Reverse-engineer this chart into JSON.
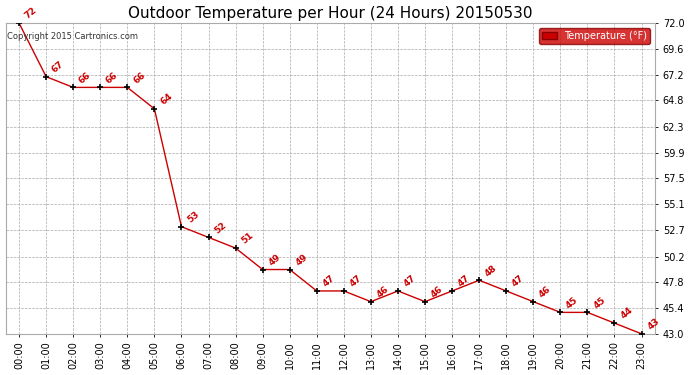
{
  "title": "Outdoor Temperature per Hour (24 Hours) 20150530",
  "copyright_text": "Copyright 2015 Cartronics.com",
  "legend_label": "Temperature (°F)",
  "hours": [
    "00:00",
    "01:00",
    "02:00",
    "03:00",
    "04:00",
    "05:00",
    "06:00",
    "07:00",
    "08:00",
    "09:00",
    "10:00",
    "11:00",
    "12:00",
    "13:00",
    "14:00",
    "15:00",
    "16:00",
    "17:00",
    "18:00",
    "19:00",
    "20:00",
    "21:00",
    "22:00",
    "23:00"
  ],
  "temps": [
    72,
    67,
    66,
    66,
    66,
    64,
    53,
    52,
    51,
    49,
    49,
    47,
    47,
    46,
    47,
    46,
    47,
    48,
    47,
    46,
    45,
    45,
    44,
    43
  ],
  "ylim": [
    43.0,
    72.0
  ],
  "yticks": [
    43.0,
    45.4,
    47.8,
    50.2,
    52.7,
    55.1,
    57.5,
    59.9,
    62.3,
    64.8,
    67.2,
    69.6,
    72.0
  ],
  "line_color": "#cc0000",
  "marker_color": "#000000",
  "label_color": "#cc0000",
  "bg_color": "#ffffff",
  "grid_color": "#aaaaaa",
  "title_fontsize": 11,
  "label_fontsize": 6.5,
  "tick_fontsize": 7,
  "legend_bg": "#cc0000",
  "legend_text_color": "#ffffff"
}
